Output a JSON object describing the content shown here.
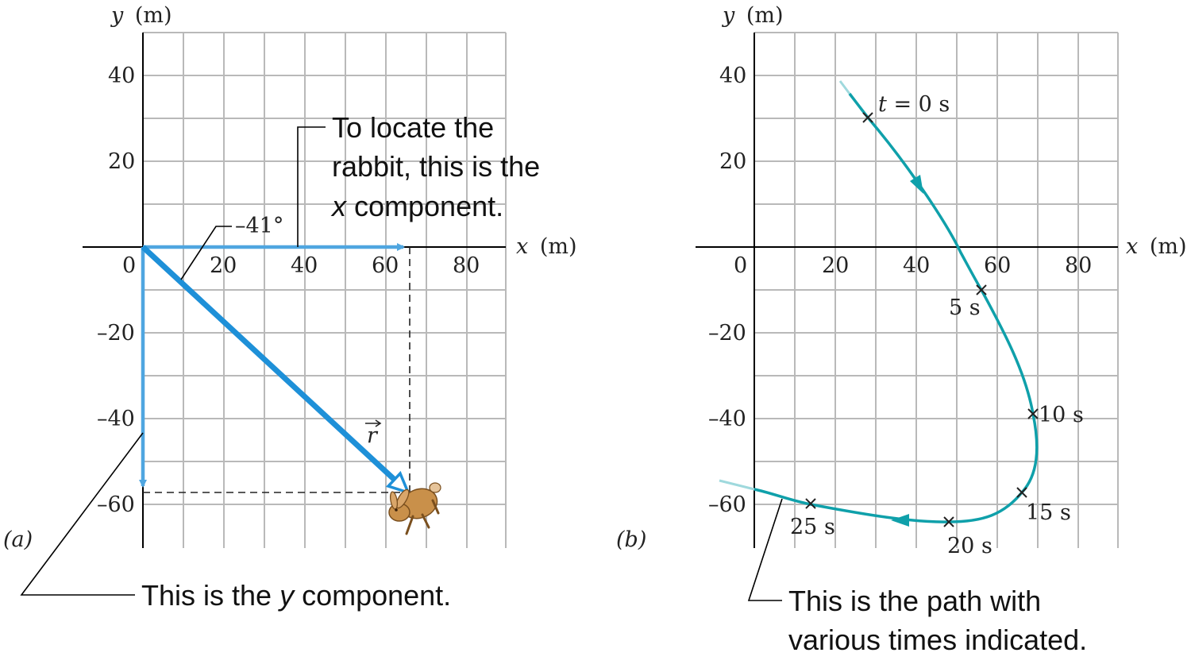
{
  "colors": {
    "component_arrow": "#4fa6e0",
    "vector_arrow": "#1e90d8",
    "path": "#0fa0aa",
    "grid": "#b9b9b9",
    "rabbit": "#c9904a"
  },
  "panel_a": {
    "tag": "(a)",
    "x_axis": {
      "var": "x",
      "unit": "(m)"
    },
    "y_axis": {
      "var": "y",
      "unit": "(m)"
    },
    "x_ticks": [
      "0",
      "20",
      "40",
      "60",
      "80"
    ],
    "y_ticks": [
      "40",
      "20",
      "–20",
      "–40",
      "–60"
    ],
    "angle_label": "–41°",
    "vector_label": "r",
    "x_component": {
      "value_m": 66
    },
    "y_component": {
      "value_m": -57
    },
    "annotation_x": [
      "To locate the",
      "rabbit, this is the",
      "x",
      " component."
    ],
    "annotation_y": [
      "This is the ",
      "y",
      " component."
    ],
    "icon": "rabbit-icon"
  },
  "panel_b": {
    "tag": "(b)",
    "x_axis": {
      "var": "x",
      "unit": "(m)"
    },
    "y_axis": {
      "var": "y",
      "unit": "(m)"
    },
    "x_ticks": [
      "0",
      "20",
      "40",
      "60",
      "80"
    ],
    "y_ticks": [
      "40",
      "20",
      "–20",
      "–40",
      "–60"
    ],
    "time_points": [
      {
        "t_var": "t",
        "label": " = 0 s",
        "x": 28,
        "y": 30
      },
      {
        "label": "5 s",
        "x": 56,
        "y": -10
      },
      {
        "label": "10 s",
        "x": 69,
        "y": -39
      },
      {
        "label": "15 s",
        "x": 66,
        "y": -57
      },
      {
        "label": "20 s",
        "x": 48,
        "y": -64
      },
      {
        "label": "25 s",
        "x": 14,
        "y": -60
      }
    ],
    "annotation": [
      "This is the path with",
      "various times indicated."
    ]
  }
}
